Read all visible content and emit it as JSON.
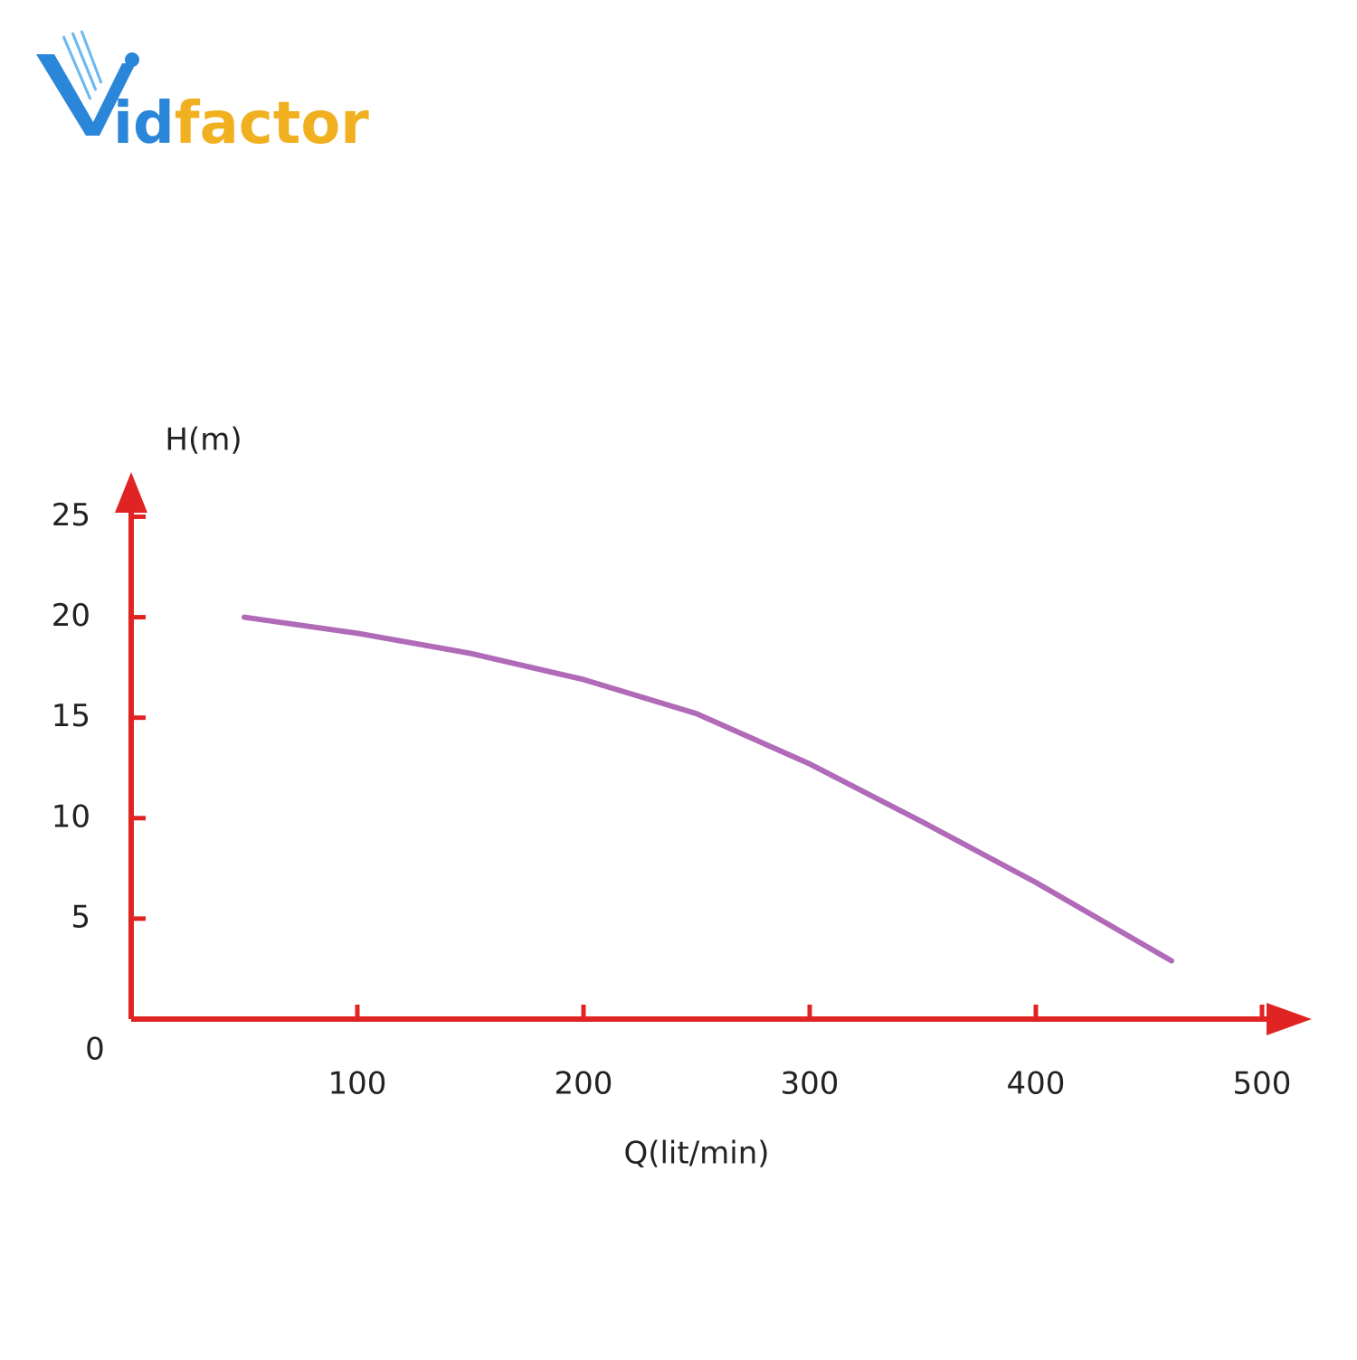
{
  "logo": [
    "V",
    "id",
    "factor"
  ],
  "chart_data": {
    "type": "line",
    "x_label": "Q(lit/min)",
    "y_label": "H(m)",
    "x": [
      50,
      100,
      150,
      200,
      250,
      300,
      350,
      400,
      460
    ],
    "values": [
      20,
      19.2,
      18.2,
      16.9,
      15.2,
      12.7,
      9.8,
      6.8,
      2.9
    ],
    "color": "#b06ab8",
    "axis_color": "#e02424",
    "xlim": [
      0,
      520
    ],
    "ylim": [
      0,
      27
    ],
    "xticks": [
      100,
      200,
      300,
      400,
      500
    ],
    "yticks": [
      0,
      5,
      10,
      15,
      20,
      25
    ]
  }
}
